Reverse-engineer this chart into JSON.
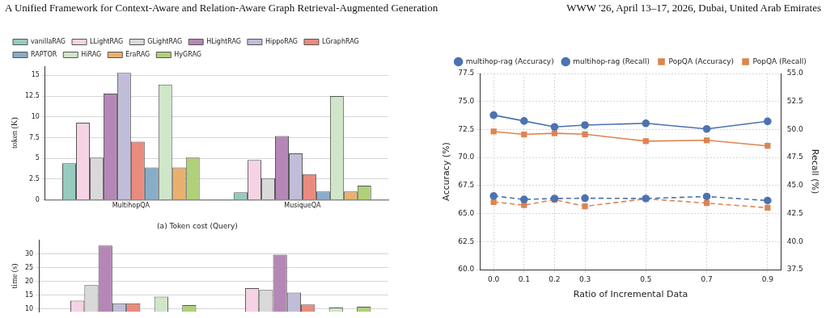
{
  "chart_data": [
    {
      "type": "bar",
      "title": "(a) Token cost (Query)",
      "ylabel": "token (K)",
      "annotations": [
        "A Unified Framework for Context-Aware and Relation-Aware Graph Retrieval-Augmented Generation",
        "WWW '26, April 13–17, 2026, Dubai, United Arab Emirates"
      ],
      "categories": [
        "MultihopQA",
        "MusiqueQA"
      ],
      "ylim": [
        0,
        16.1
      ],
      "yticks": [
        0,
        2.5,
        5,
        7.5,
        10,
        12.5,
        15
      ],
      "grid": "y",
      "legend": "top left",
      "series": [
        {
          "name": "vanillaRAG",
          "color": "#96cbbf",
          "values": [
            4.4,
            0.9
          ]
        },
        {
          "name": "LLightRAG",
          "color": "#f5d3e4",
          "values": [
            9.3,
            4.8
          ]
        },
        {
          "name": "GLightRAG",
          "color": "#d9d9d9",
          "values": [
            5.1,
            2.6
          ]
        },
        {
          "name": "HLightRAG",
          "color": "#b587b6",
          "values": [
            12.8,
            7.7
          ]
        },
        {
          "name": "HippoRAG",
          "color": "#c1bdd8",
          "values": [
            15.3,
            5.6
          ]
        },
        {
          "name": "LGraphRAG",
          "color": "#e98b7f",
          "values": [
            7.0,
            3.1
          ]
        },
        {
          "name": "RAPTOR",
          "color": "#88adc8",
          "values": [
            3.9,
            1.0
          ]
        },
        {
          "name": "HiRAG",
          "color": "#d0e6c9",
          "values": [
            13.9,
            12.5
          ]
        },
        {
          "name": "EraRAG",
          "color": "#e9b06f",
          "values": [
            3.9,
            1.0
          ]
        },
        {
          "name": "HyGRAG",
          "color": "#b0d07a",
          "values": [
            5.1,
            1.7
          ]
        }
      ]
    },
    {
      "type": "bar",
      "ylabel": "time (s)",
      "categories": [
        null,
        null
      ],
      "ylim": [
        9,
        35
      ],
      "yticks": [
        10,
        15,
        20,
        25,
        30
      ],
      "grid": "y",
      "tick_labels": "y",
      "series": [
        {
          "color": "#96cbbf",
          "values": [
            null,
            null
          ]
        },
        {
          "color": "#f5d3e4",
          "values": [
            13.0,
            17.6
          ]
        },
        {
          "color": "#d9d9d9",
          "values": [
            18.7,
            16.9
          ]
        },
        {
          "color": "#b587b6",
          "values": [
            33.1,
            29.8
          ]
        },
        {
          "color": "#c1bdd8",
          "values": [
            12.1,
            16.0
          ]
        },
        {
          "color": "#e98b7f",
          "values": [
            12.1,
            11.6
          ]
        },
        {
          "color": "#88adc8",
          "values": [
            null,
            null
          ]
        },
        {
          "color": "#d0e6c9",
          "values": [
            14.5,
            10.5
          ]
        },
        {
          "color": "#e9b06f",
          "values": [
            null,
            null
          ]
        },
        {
          "color": "#b0d07a",
          "values": [
            11.4,
            10.8
          ]
        }
      ]
    },
    {
      "type": "line",
      "xlabel": "Ratio of Incremental Data",
      "ylabel": "Accuracy (%)",
      "y2label": "Recall (%)",
      "x": [
        0,
        0.1,
        0.2,
        0.3,
        0.5,
        0.7,
        0.9
      ],
      "xlim": [
        -0.045,
        0.945
      ],
      "xticks": [
        {
          "value": 0,
          "label": "0.0"
        },
        0.1,
        0.2,
        0.3,
        0.5,
        0.7,
        0.9
      ],
      "ylim": [
        60,
        77.5
      ],
      "yticks": [
        {
          "value": 60,
          "label": "60.0"
        },
        62.5,
        {
          "value": 65,
          "label": "65.0"
        },
        67.5,
        {
          "value": 70,
          "label": "70.0"
        },
        72.5,
        {
          "value": 75,
          "label": "75.0"
        },
        77.5
      ],
      "y2lim": [
        37.5,
        55
      ],
      "y2ticks": [
        37.5,
        {
          "value": 40,
          "label": "40.0"
        },
        42.5,
        {
          "value": 45,
          "label": "45.0"
        },
        47.5,
        {
          "value": 50,
          "label": "50.0"
        },
        52.5,
        {
          "value": 55,
          "label": "55.0"
        }
      ],
      "grid": true,
      "legend": "top",
      "series": [
        {
          "name": "multihop-rag (Accuracy)",
          "color": "#4c72b0",
          "marker": "circle",
          "line_style": "solid",
          "values": [
            73.78,
            73.26,
            72.73,
            72.89,
            73.05,
            72.55,
            73.23
          ]
        },
        {
          "name": "multihop-rag (Recall)",
          "color": "#4c72b0",
          "marker": "circle",
          "line_style": "dashed",
          "axis": "y2",
          "values": [
            44.07,
            43.76,
            43.84,
            43.87,
            43.84,
            44.02,
            43.66
          ]
        },
        {
          "name": "PopQA (Accuracy)",
          "color": "#dd8452",
          "marker": "square",
          "line_style": "solid",
          "values": [
            72.32,
            72.06,
            72.16,
            72.08,
            71.46,
            71.54,
            71.04
          ]
        },
        {
          "name": "PopQA (Recall)",
          "color": "#dd8452",
          "marker": "square",
          "line_style": "dashed",
          "axis": "y2",
          "values": [
            43.53,
            43.25,
            43.74,
            43.14,
            43.81,
            43.43,
            43.01
          ]
        }
      ]
    }
  ]
}
